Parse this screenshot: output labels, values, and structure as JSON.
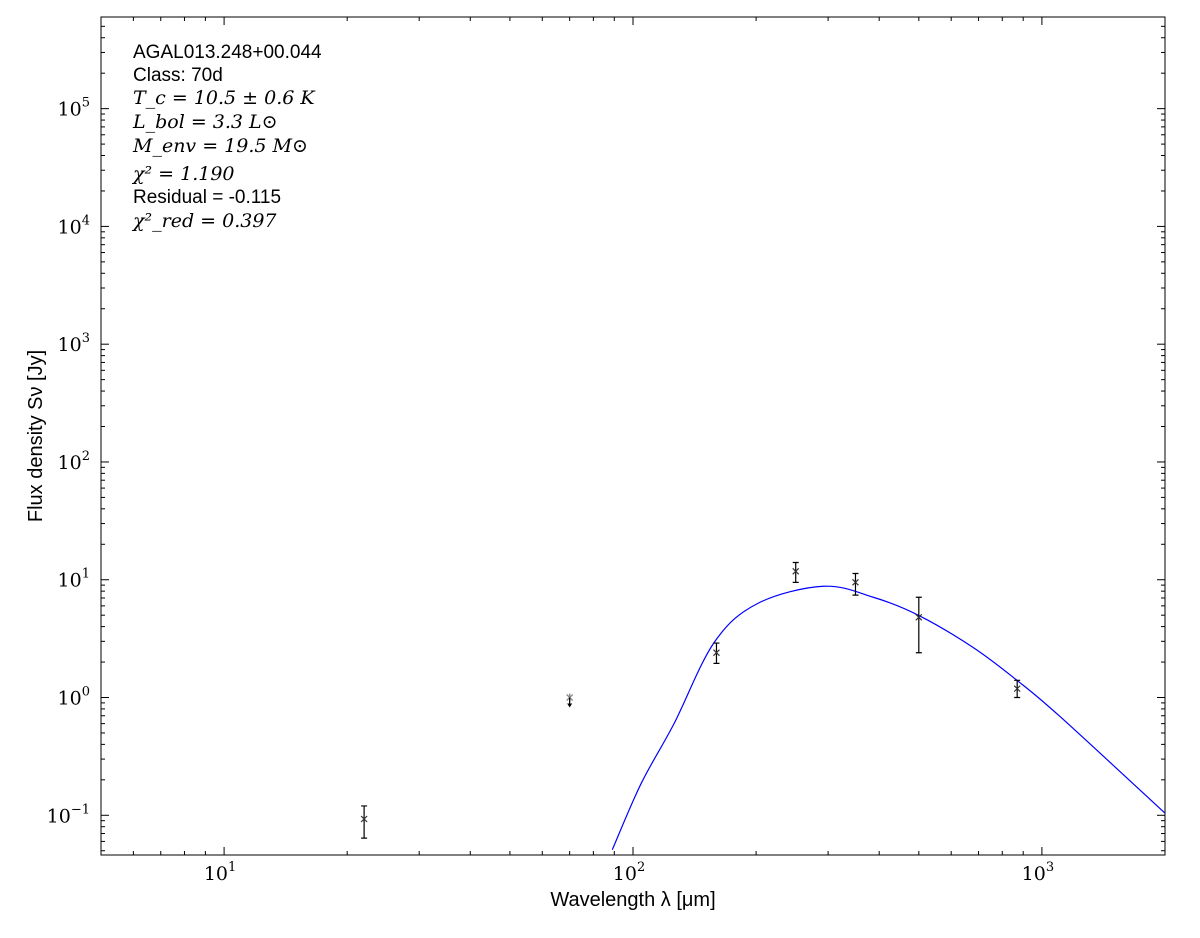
{
  "chart_data": {
    "type": "scatter",
    "xlabel": "Wavelength λ [μm]",
    "ylabel": "Flux density Sν [Jy]",
    "xscale": "log",
    "yscale": "log",
    "xlim": [
      5,
      2000
    ],
    "ylim": [
      0.046,
      600000
    ],
    "x_ticks": [
      {
        "value": 10,
        "label": "10",
        "exp": "1"
      },
      {
        "value": 100,
        "label": "10",
        "exp": "2"
      },
      {
        "value": 1000,
        "label": "10",
        "exp": "3"
      }
    ],
    "y_ticks": [
      {
        "value": 0.1,
        "label": "10",
        "exp": "−1"
      },
      {
        "value": 1,
        "label": "10",
        "exp": "0"
      },
      {
        "value": 10,
        "label": "10",
        "exp": "1"
      },
      {
        "value": 100,
        "label": "10",
        "exp": "2"
      },
      {
        "value": 1000,
        "label": "10",
        "exp": "3"
      },
      {
        "value": 10000,
        "label": "10",
        "exp": "4"
      },
      {
        "value": 100000,
        "label": "10",
        "exp": "5"
      }
    ],
    "grid": false,
    "annotations": {
      "source": "AGAL013.248+00.044",
      "class": "Class: 70d",
      "tc": "T_c = 10.5 ± 0.6 K",
      "lbol": "L_bol = 3.3 L⊙",
      "menv": "M_env = 19.5 M⊙",
      "chi2": "χ² = 1.190",
      "residual": "Residual = -0.115",
      "chi2red": "χ²_red = 0.397"
    },
    "points": [
      {
        "x": 22,
        "y": 0.093,
        "ylo": 0.064,
        "yhi": 0.12,
        "upper_limit": false
      },
      {
        "x": 70,
        "y": 1.0,
        "upper_limit": true
      },
      {
        "x": 160,
        "y": 2.4,
        "ylo": 1.95,
        "yhi": 2.9,
        "upper_limit": false
      },
      {
        "x": 250,
        "y": 11.8,
        "ylo": 9.5,
        "yhi": 14,
        "upper_limit": false
      },
      {
        "x": 350,
        "y": 9.5,
        "ylo": 7.4,
        "yhi": 11.3,
        "upper_limit": false
      },
      {
        "x": 500,
        "y": 4.8,
        "ylo": 2.4,
        "yhi": 7.1,
        "upper_limit": false
      },
      {
        "x": 870,
        "y": 1.19,
        "ylo": 1.0,
        "yhi": 1.4,
        "upper_limit": false
      }
    ],
    "model_curve": {
      "color": "#0000ff",
      "x": [
        89,
        104.6,
        126,
        158,
        202,
        292,
        387,
        499,
        679,
        869,
        1107,
        1995
      ],
      "y": [
        0.051,
        0.185,
        0.6,
        2.94,
        6.3,
        8.8,
        7.1,
        4.99,
        2.66,
        1.4,
        0.69,
        0.105
      ]
    }
  }
}
